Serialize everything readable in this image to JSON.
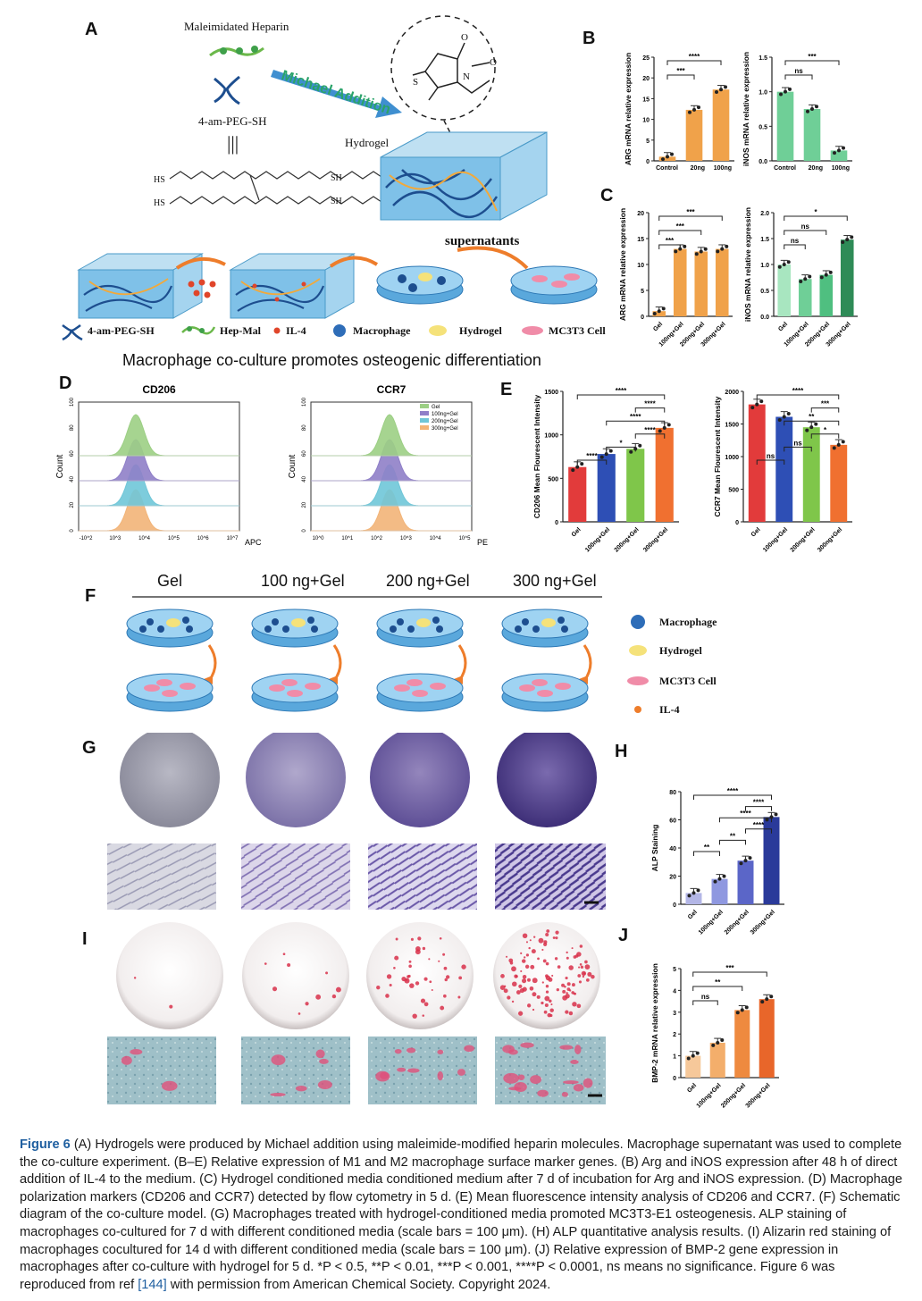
{
  "panels": {
    "A": "A",
    "B": "B",
    "C": "C",
    "D": "D",
    "E": "E",
    "F": "F",
    "G": "G",
    "H": "H",
    "I": "I",
    "J": "J"
  },
  "colors": {
    "arg_orange": "#f0a24a",
    "arg_orange_dark": "#e8843a",
    "inos_green": "#6fcf97",
    "inos_green_dark": "#2e8b57",
    "red": "#e23b3b",
    "blue": "#2e4fb5",
    "green": "#7fc64a",
    "orange": "#f07030",
    "dark_blue": "#2a3a9a",
    "caption_blue": "#1f5fa0"
  },
  "schematic": {
    "maleimidated_heparin": "Maleimidated Heparin",
    "michael_addition": "Michael Addition",
    "peg": "4-am-PEG-SH",
    "bars": "|||",
    "hydrogel": "Hydrogel",
    "supernatants": "supernatants",
    "hs1": "HS",
    "hs2": "HS",
    "sh1": "SH",
    "sh2": "SH",
    "atom_o1": "O",
    "atom_o2": "O",
    "atom_n": "N",
    "atom_s": "S",
    "legend": {
      "peg": "4-am-PEG-SH",
      "hepmal": "Hep-Mal",
      "il4": "IL-4",
      "macrophage": "Macrophage",
      "hydrogel": "Hydrogel",
      "mc3t3": "MC3T3 Cell"
    },
    "title": "Macrophage co-culture promotes osteogenic differentiation"
  },
  "flow": {
    "cd206": {
      "title": "CD206",
      "xlabel": "APC",
      "ylabel": "Count",
      "xticks": [
        "-10^2",
        "10^3",
        "10^4",
        "10^5",
        "10^6",
        "10^7"
      ],
      "yticks": [
        "0",
        "20",
        "40",
        "60",
        "80",
        "100"
      ]
    },
    "ccr7": {
      "title": "CCR7",
      "xlabel": "PE",
      "ylabel": "Count",
      "xticks": [
        "10^0",
        "10^1",
        "10^2",
        "10^3",
        "10^4",
        "10^5"
      ],
      "yticks": [
        "0",
        "20",
        "40",
        "60",
        "80",
        "100"
      ],
      "legend": [
        "Gel",
        "100ng+Gel",
        "200ng+Gel",
        "300ng+Gel"
      ]
    }
  },
  "groups_f": {
    "gel": "Gel",
    "g100": "100 ng+Gel",
    "g200": "200 ng+Gel",
    "g300": "300 ng+Gel"
  },
  "legend_f": {
    "macrophage": "Macrophage",
    "hydrogel": "Hydrogel",
    "mc3t3": "MC3T3 Cell",
    "il4": "IL-4"
  },
  "chart_data": [
    {
      "id": "B-ARG",
      "type": "bar",
      "categories": [
        "Control",
        "20ng",
        "100ng"
      ],
      "values": [
        1,
        12.3,
        17.2
      ],
      "ylabel": "ARG mRNA relative expression",
      "ylim": [
        0,
        25
      ],
      "yticks": [
        "0",
        "5",
        "10",
        "15",
        "20",
        "25"
      ],
      "sig": [
        "***",
        "****"
      ]
    },
    {
      "id": "B-iNOS",
      "type": "bar",
      "categories": [
        "Control",
        "20ng",
        "100ng"
      ],
      "values": [
        1.0,
        0.75,
        0.15
      ],
      "ylabel": "iNOS mRNA relative expression",
      "ylim": [
        0,
        1.5
      ],
      "yticks": [
        "0.0",
        "0.5",
        "1.0",
        "1.5"
      ],
      "sig": [
        "ns",
        "***"
      ]
    },
    {
      "id": "C-ARG",
      "type": "bar",
      "categories": [
        "Gel",
        "100ng+Gel",
        "200ng+Gel",
        "300ng+Gel"
      ],
      "values": [
        1,
        13,
        12.5,
        13
      ],
      "ylabel": "ARG mRNA relative expression",
      "ylim": [
        0,
        20
      ],
      "yticks": [
        "0",
        "5",
        "10",
        "15",
        "20"
      ],
      "sig": [
        "***",
        "***",
        "***"
      ]
    },
    {
      "id": "C-iNOS",
      "type": "bar",
      "categories": [
        "Gel",
        "100ng+Gel",
        "200ng+Gel",
        "300ng+Gel"
      ],
      "values": [
        1.0,
        0.72,
        0.8,
        1.48
      ],
      "ylabel": "iNOS mRNA relative expression",
      "ylim": [
        0,
        2.0
      ],
      "yticks": [
        "0.0",
        "0.5",
        "1.0",
        "1.5",
        "2.0"
      ],
      "sig": [
        "ns",
        "ns",
        "*"
      ]
    },
    {
      "id": "E-CD206",
      "type": "bar",
      "categories": [
        "Gel",
        "100ng+Gel",
        "200ng+Gel",
        "300ng+Gel"
      ],
      "values": [
        630,
        780,
        840,
        1080
      ],
      "ylabel": "CD206 Mean Flourescent Intensity",
      "ylim": [
        0,
        1500
      ],
      "yticks": [
        "0",
        "500",
        "1000",
        "1500"
      ],
      "sig": [
        "****",
        "*",
        "****",
        "****",
        "****",
        "****"
      ]
    },
    {
      "id": "E-CCR7",
      "type": "bar",
      "categories": [
        "Gel",
        "100ng+Gel",
        "200ng+Gel",
        "300ng+Gel"
      ],
      "values": [
        1800,
        1610,
        1450,
        1180
      ],
      "ylabel": "CCR7 Mean Flourescent Intensity",
      "ylim": [
        0,
        2000
      ],
      "yticks": [
        "0",
        "500",
        "1000",
        "1500",
        "2000"
      ],
      "sig": [
        "ns",
        "ns",
        "*",
        "**",
        "***",
        "****"
      ]
    },
    {
      "id": "H-ALP",
      "type": "bar",
      "categories": [
        "Gel",
        "100ng+Gel",
        "200ng+Gel",
        "300ng+Gel"
      ],
      "values": [
        8,
        18,
        31,
        62
      ],
      "ylabel": "ALP Staining",
      "ylim": [
        0,
        80
      ],
      "yticks": [
        "0",
        "20",
        "40",
        "60",
        "80"
      ],
      "sig": [
        "**",
        "**",
        "****",
        "****",
        "****",
        "****"
      ]
    },
    {
      "id": "J-BMP2",
      "type": "bar",
      "categories": [
        "Gel",
        "100ng+Gel",
        "200ng+Gel",
        "300ng+Gel"
      ],
      "values": [
        1.0,
        1.6,
        3.1,
        3.6
      ],
      "ylabel": "BMP-2 mRNA relative expression",
      "ylim": [
        0,
        5
      ],
      "yticks": [
        "0",
        "1",
        "2",
        "3",
        "4",
        "5"
      ],
      "sig": [
        "ns",
        "**",
        "***"
      ]
    }
  ],
  "caption": {
    "label": "Figure 6",
    "text": " (A) Hydrogels were produced by Michael addition using maleimide-modified heparin molecules. Macrophage supernatant was used to complete the co-culture experiment. (B–E) Relative expression of M1 and M2 macrophage surface marker genes. (B) Arg and iNOS expression after 48 h of direct addition of IL-4 to the medium. (C) Hydrogel conditioned media conditioned medium after 7 d of incubation for Arg and iNOS expression. (D) Macrophage polarization markers (CD206 and CCR7) detected by flow cytometry in 5 d. (E) Mean fluorescence intensity analysis of CD206 and CCR7. (F) Schematic diagram of the co-culture model. (G) Macrophages treated with hydrogel-conditioned media promoted MC3T3-E1 osteogenesis. ALP staining of macrophages co-cultured for 7 d with different conditioned media (scale bars = 100 μm). (H) ALP quantitative analysis results. (I) Alizarin red staining of macrophages cocultured for 14 d with different conditioned media (scale bars = 100 μm). (J) Relative expression of BMP-2 gene expression in macrophages after co-culture with hydrogel for 5 d. *P < 0.5, **P < 0.01, ***P < 0.001, ****P < 0.0001, ns means no significance. Figure 6 was reproduced from ref ",
    "ref": "[144]",
    "tail": " with permission from American Chemical Society. Copyright 2024."
  }
}
